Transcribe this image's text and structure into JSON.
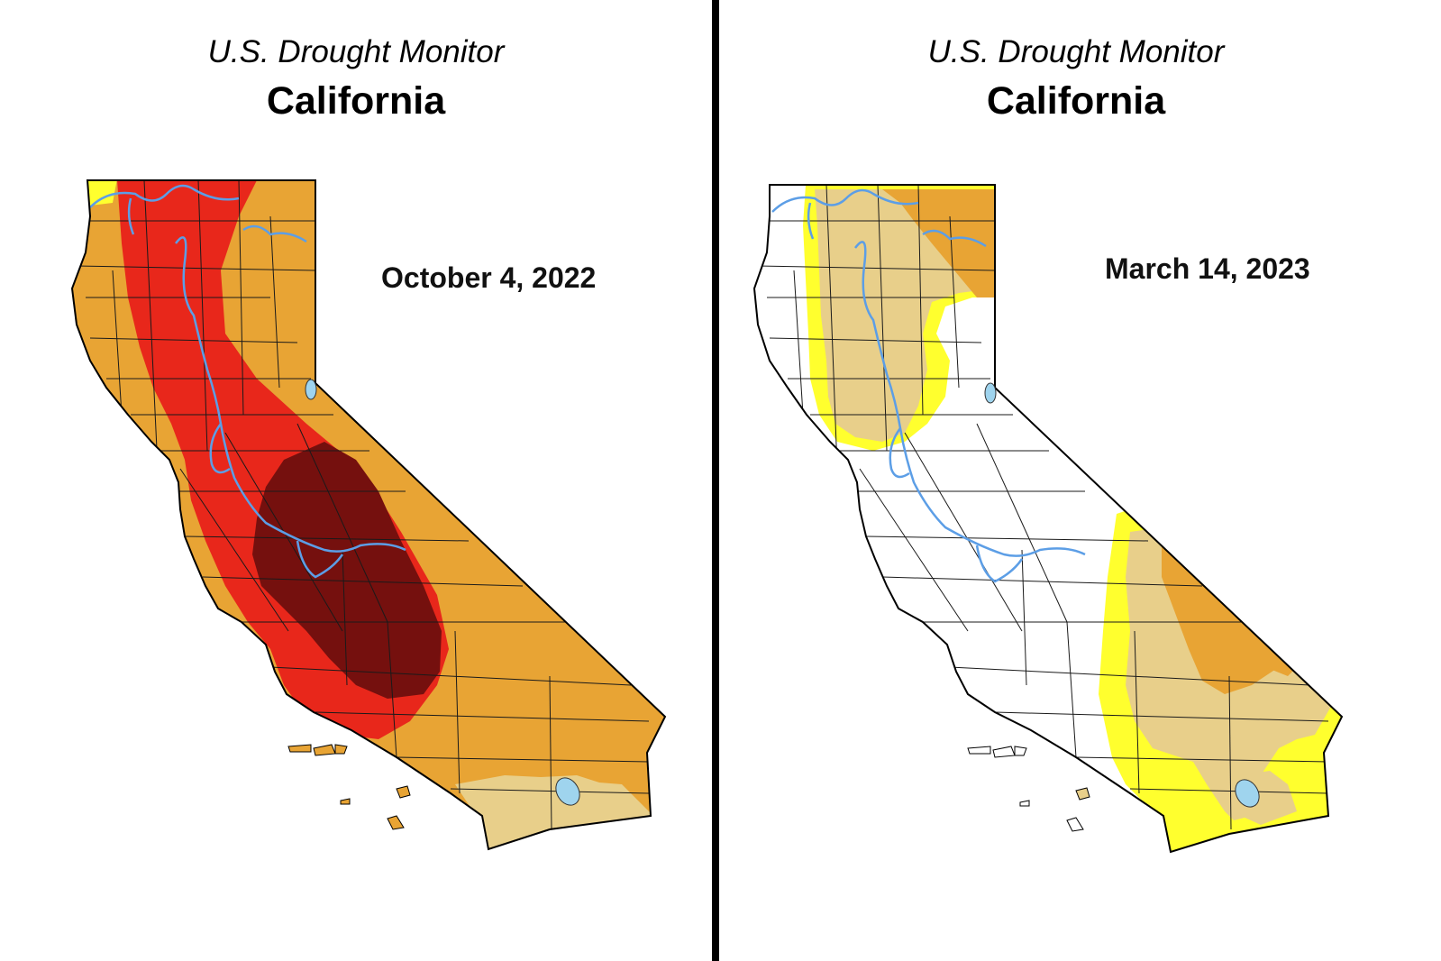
{
  "colors": {
    "none": "#ffffff",
    "d0_abnormally_dry": "#ffff2e",
    "d1_moderate": "#e8cf8a",
    "d2_severe": "#e8a434",
    "d3_extreme": "#e8271b",
    "d4_exceptional": "#75100e",
    "water": "#9fd4ee",
    "river": "#5c9ee6",
    "county_line": "#1a1a1a"
  },
  "maps": [
    {
      "subtitle": "U.S. Drought Monitor",
      "title": "California",
      "date": "October 4, 2022",
      "base_category": "d2_severe"
    },
    {
      "subtitle": "U.S. Drought Monitor",
      "title": "California",
      "date": "March 14, 2023",
      "base_category": "none"
    }
  ]
}
